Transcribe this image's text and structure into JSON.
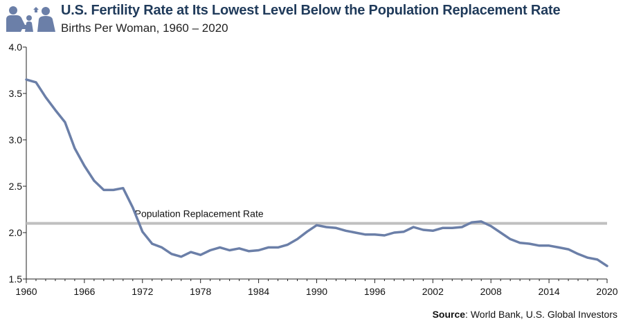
{
  "header": {
    "title": "U.S. Fertility Rate at Its Lowest Level Below the Population Replacement Rate",
    "subtitle": "Births Per Woman, 1960 – 2020",
    "logo_icon": "family-icon"
  },
  "source": {
    "label": "Source",
    "text": ": World Bank, U.S. Global Investors"
  },
  "chart_data": {
    "type": "line",
    "title": "U.S. Fertility Rate at Its Lowest Level Below the Population Replacement Rate",
    "subtitle": "Births Per Woman, 1960 – 2020",
    "xlabel": "",
    "ylabel": "",
    "xlim": [
      1960,
      2020
    ],
    "ylim": [
      1.5,
      4.0
    ],
    "x_ticks": [
      1960,
      1966,
      1972,
      1978,
      1984,
      1990,
      1996,
      2002,
      2008,
      2014,
      2020
    ],
    "y_ticks": [
      "1.5",
      "2.0",
      "2.5",
      "3.0",
      "3.5",
      "4.0"
    ],
    "grid": false,
    "reference_line": {
      "label": "Population Replacement Rate",
      "value": 2.1,
      "color": "#c0c0c0"
    },
    "series": [
      {
        "color": "#6b7fa8",
        "x": [
          1960,
          1961,
          1962,
          1963,
          1964,
          1965,
          1966,
          1967,
          1968,
          1969,
          1970,
          1971,
          1972,
          1973,
          1974,
          1975,
          1976,
          1977,
          1978,
          1979,
          1980,
          1981,
          1982,
          1983,
          1984,
          1985,
          1986,
          1987,
          1988,
          1989,
          1990,
          1991,
          1992,
          1993,
          1994,
          1995,
          1996,
          1997,
          1998,
          1999,
          2000,
          2001,
          2002,
          2003,
          2004,
          2005,
          2006,
          2007,
          2008,
          2009,
          2010,
          2011,
          2012,
          2013,
          2014,
          2015,
          2016,
          2017,
          2018,
          2019,
          2020
        ],
        "values": [
          3.65,
          3.62,
          3.46,
          3.32,
          3.19,
          2.91,
          2.72,
          2.56,
          2.46,
          2.46,
          2.48,
          2.27,
          2.01,
          1.88,
          1.84,
          1.77,
          1.74,
          1.79,
          1.76,
          1.81,
          1.84,
          1.81,
          1.83,
          1.8,
          1.81,
          1.84,
          1.84,
          1.87,
          1.93,
          2.01,
          2.08,
          2.06,
          2.05,
          2.02,
          2.0,
          1.98,
          1.98,
          1.97,
          2.0,
          2.01,
          2.06,
          2.03,
          2.02,
          2.05,
          2.05,
          2.06,
          2.11,
          2.12,
          2.07,
          2.0,
          1.93,
          1.89,
          1.88,
          1.86,
          1.86,
          1.84,
          1.82,
          1.77,
          1.73,
          1.71,
          1.64
        ]
      }
    ]
  }
}
